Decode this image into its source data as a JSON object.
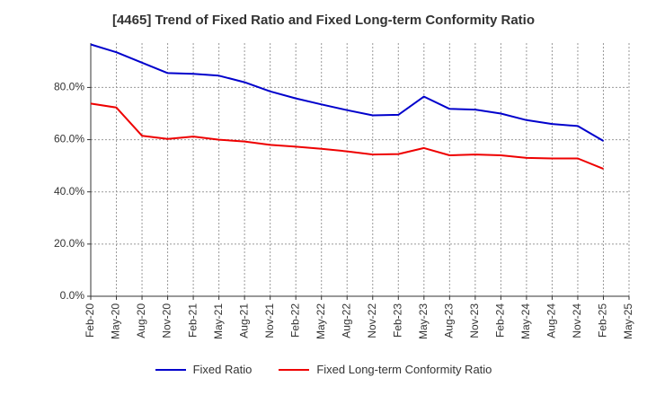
{
  "chart_data": {
    "type": "line",
    "title": "[4465]  Trend of Fixed Ratio and Fixed Long-term Conformity Ratio",
    "x": [
      "Feb-20",
      "May-20",
      "Aug-20",
      "Nov-20",
      "Feb-21",
      "May-21",
      "Aug-21",
      "Nov-21",
      "Feb-22",
      "May-22",
      "Aug-22",
      "Nov-22",
      "Feb-23",
      "May-23",
      "Aug-23",
      "Nov-23",
      "Feb-24",
      "May-24",
      "Aug-24",
      "Nov-24",
      "Feb-25"
    ],
    "x_tick_labels": [
      "Feb-20",
      "May-20",
      "Aug-20",
      "Nov-20",
      "Feb-21",
      "May-21",
      "Aug-21",
      "Nov-21",
      "Feb-22",
      "May-22",
      "Aug-22",
      "Nov-22",
      "Feb-23",
      "May-23",
      "Aug-23",
      "Nov-23",
      "Feb-24",
      "May-24",
      "Aug-24",
      "Nov-24",
      "Feb-25",
      "May-25"
    ],
    "y_tick_labels": [
      "0.0%",
      "20.0%",
      "40.0%",
      "60.0%",
      "80.0%"
    ],
    "y_ticks": [
      0,
      20,
      40,
      60,
      80
    ],
    "ylim": [
      0,
      97
    ],
    "grid": true,
    "legend_position": "bottom",
    "series": [
      {
        "name": "Fixed Ratio",
        "color": "#0000cc",
        "values": [
          96.5,
          93.5,
          89.5,
          85.5,
          85.2,
          84.5,
          82.0,
          78.5,
          75.8,
          73.5,
          71.3,
          69.3,
          69.5,
          76.5,
          71.8,
          71.5,
          70.0,
          67.5,
          66.0,
          65.2,
          59.5
        ]
      },
      {
        "name": "Fixed Long-term Conformity Ratio",
        "color": "#ee0000",
        "values": [
          73.8,
          72.3,
          61.5,
          60.3,
          61.2,
          60.0,
          59.3,
          58.0,
          57.3,
          56.5,
          55.5,
          54.3,
          54.5,
          56.8,
          54.0,
          54.3,
          54.0,
          53.0,
          52.8,
          52.8,
          48.8
        ]
      }
    ]
  }
}
